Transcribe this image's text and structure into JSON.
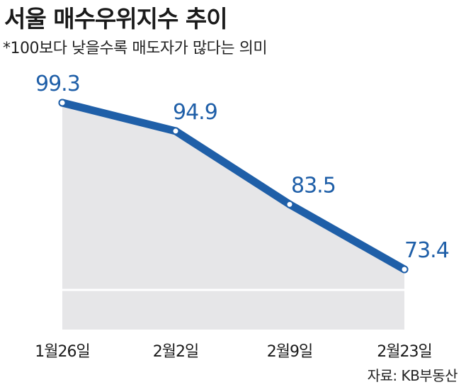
{
  "title": "서울 매수우위지수 추이",
  "subtitle": "*100보다 낮을수록 매도자가 많다는 의미",
  "source": "자료: KB부동산",
  "colors": {
    "line": "#1f5fa8",
    "area": "#e6e6e8",
    "marker_fill": "#ffffff",
    "label": "#1f5fa8"
  },
  "chart_data": {
    "type": "area",
    "title": "서울 매수우위지수 추이",
    "subtitle": "*100보다 낮을수록 매도자가 많다는 의미",
    "categories": [
      "1월26일",
      "2월2일",
      "2월9일",
      "2월23일"
    ],
    "values": [
      99.3,
      94.9,
      83.5,
      73.4
    ],
    "data_labels": [
      "99.3",
      "94.9",
      "83.5",
      "73.4"
    ],
    "xlabel": "",
    "ylabel": "",
    "ylim": [
      60,
      100
    ],
    "grid": false,
    "legend": "none"
  }
}
